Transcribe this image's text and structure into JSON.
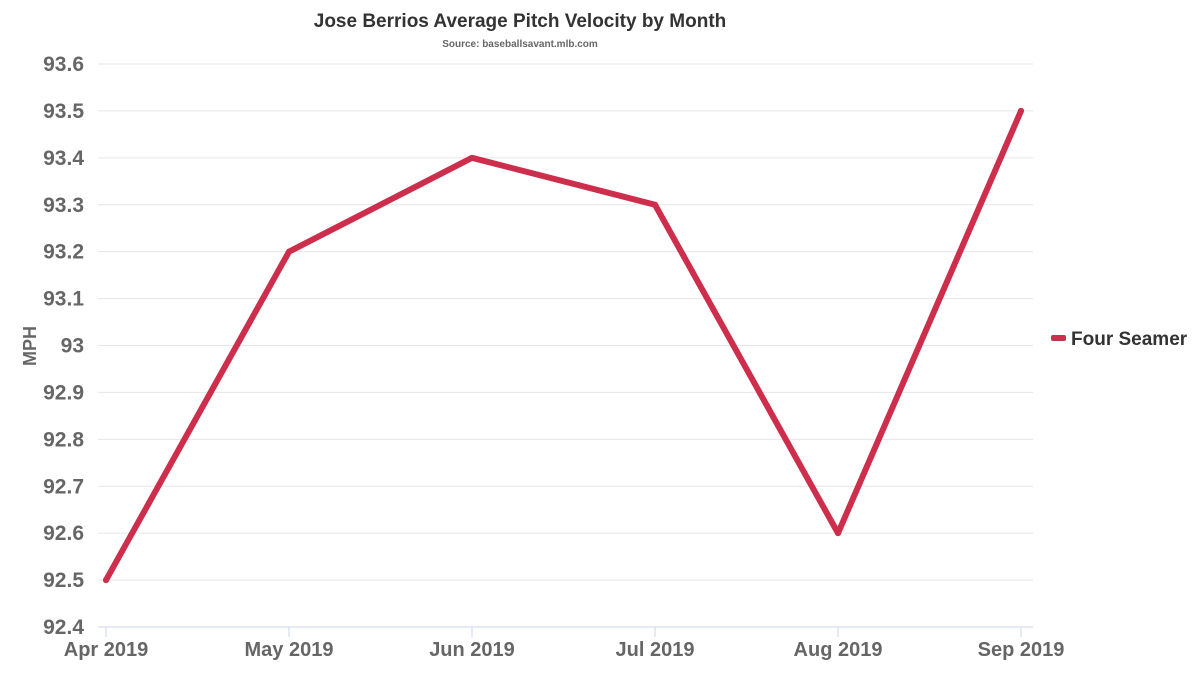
{
  "chart_data": {
    "type": "line",
    "title": "Jose Berrios Average Pitch Velocity by Month",
    "subtitle": "Source: baseballsavant.mlb.com",
    "xlabel": "",
    "ylabel": "MPH",
    "categories": [
      "Apr 2019",
      "May 2019",
      "Jun 2019",
      "Jul 2019",
      "Aug 2019",
      "Sep 2019"
    ],
    "series": [
      {
        "name": "Four Seamer",
        "color": "#cc2e4c",
        "values": [
          92.5,
          93.2,
          93.4,
          93.3,
          92.6,
          93.5
        ]
      }
    ],
    "ylim": [
      92.4,
      93.6
    ],
    "yticks": [
      "92.4",
      "92.5",
      "92.6",
      "92.7",
      "92.8",
      "92.9",
      "93",
      "93.1",
      "93.2",
      "93.3",
      "93.4",
      "93.5",
      "93.6"
    ],
    "ytick_values": [
      92.4,
      92.5,
      92.6,
      92.7,
      92.8,
      92.9,
      93.0,
      93.1,
      93.2,
      93.3,
      93.4,
      93.5,
      93.6
    ],
    "grid": true,
    "legend_position": "right"
  }
}
